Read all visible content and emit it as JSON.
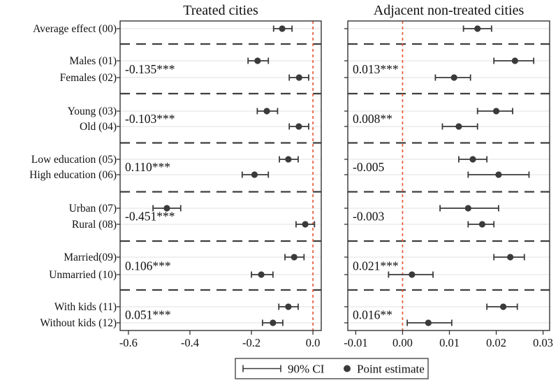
{
  "chart_data": {
    "type": "scatter",
    "subtype": "coefficient-plot-with-ci",
    "grid": "horizontal-light",
    "legend_position": "bottom",
    "legend": {
      "ci_label": "90% CI",
      "point_label": "Point estimate"
    },
    "categories": [
      "Average effect (00)",
      "Males (01)",
      "Females (02)",
      "Young (03)",
      "Old (04)",
      "Low education (05)",
      "High education (06)",
      "Urban (07)",
      "Rural (08)",
      "Married(09)",
      "Unmarried (10)",
      "With kids (11)",
      "Without kids (12)"
    ],
    "pair_rows": [
      [
        1,
        2
      ],
      [
        3,
        4
      ],
      [
        5,
        6
      ],
      [
        7,
        8
      ],
      [
        9,
        10
      ],
      [
        11,
        12
      ]
    ],
    "colors": {
      "point": "#3a3a3a",
      "ci": "#3a3a3a",
      "zero_line": "#e8502d",
      "annotation": "#2727c8",
      "separator": "#3f3f3f",
      "gridline": "#e0e0e0",
      "frame": "#333333",
      "legend_frame": "#555555"
    },
    "panels": [
      {
        "title": "Treated cities",
        "xlim": [
          -0.627,
          0.027
        ],
        "zero_line": 0.0,
        "xtick_values": [
          -0.6,
          -0.4,
          -0.2,
          0.0
        ],
        "xticks": [
          "-0.6",
          "-0.4",
          "-0.2",
          "0.0"
        ],
        "series": [
          {
            "name": "Point estimate",
            "values": [
              -0.1,
              -0.18,
              -0.045,
              -0.15,
              -0.046,
              -0.08,
              -0.19,
              -0.475,
              -0.025,
              -0.061,
              -0.168,
              -0.08,
              -0.13
            ]
          }
        ],
        "ci_low": [
          -0.128,
          -0.211,
          -0.077,
          -0.181,
          -0.077,
          -0.109,
          -0.23,
          -0.52,
          -0.055,
          -0.091,
          -0.2,
          -0.111,
          -0.164
        ],
        "ci_high": [
          -0.068,
          -0.145,
          -0.014,
          -0.115,
          -0.014,
          -0.048,
          -0.145,
          -0.43,
          0.005,
          -0.029,
          -0.13,
          -0.048,
          -0.098
        ],
        "annotations": [
          "-0.135***",
          "-0.103***",
          "0.110***",
          "-0.451***",
          "0.106***",
          "0.051***"
        ]
      },
      {
        "title": "Adjacent non-treated cities",
        "xlim": [
          -0.0117,
          0.0314
        ],
        "zero_line": 0.0,
        "xtick_values": [
          -0.01,
          0.0,
          0.01,
          0.02,
          0.03
        ],
        "xticks": [
          "-0.01",
          "0.00",
          "0.01",
          "0.02",
          "0.03"
        ],
        "series": [
          {
            "name": "Point estimate",
            "values": [
              0.016,
              0.024,
              0.011,
              0.02,
              0.012,
              0.015,
              0.0205,
              0.014,
              0.017,
              0.023,
              0.002,
              0.0215,
              0.0055
            ]
          }
        ],
        "ci_low": [
          0.013,
          0.0195,
          0.007,
          0.016,
          0.0085,
          0.012,
          0.014,
          0.008,
          0.014,
          0.0195,
          -0.003,
          0.018,
          0.001
        ],
        "ci_high": [
          0.019,
          0.028,
          0.0145,
          0.0235,
          0.016,
          0.018,
          0.027,
          0.0205,
          0.0195,
          0.026,
          0.0065,
          0.0245,
          0.0105
        ],
        "annotations": [
          "0.013***",
          "0.008**",
          "-0.005",
          "-0.003",
          "0.021***",
          "0.016**"
        ]
      }
    ]
  }
}
